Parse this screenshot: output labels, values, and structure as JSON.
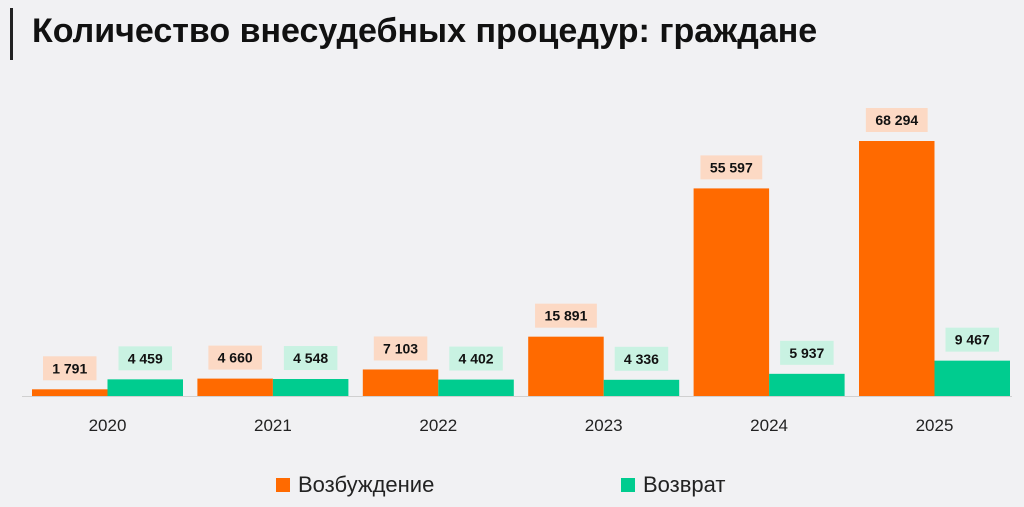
{
  "title": "Количество внесудебных процедур: граждане",
  "colors": {
    "initiation": "#ff6a00",
    "return": "#00cc8f",
    "initiation_label_bg": "#fcd9c4",
    "return_label_bg": "#c9f2e2"
  },
  "chart_data": {
    "type": "bar",
    "title": "Количество внесудебных процедур: граждане",
    "categories": [
      "2020",
      "2021",
      "2022",
      "2023",
      "2024",
      "2025"
    ],
    "series": [
      {
        "name": "Возбуждение",
        "values": [
          1791,
          4660,
          7103,
          15891,
          55597,
          68294
        ],
        "labels": [
          "1 791",
          "4 660",
          "7 103",
          "15 891",
          "55 597",
          "68 294"
        ]
      },
      {
        "name": "Возврат",
        "values": [
          4459,
          4548,
          4402,
          4336,
          5937,
          9467
        ],
        "labels": [
          "4 459",
          "4 548",
          "4 402",
          "4 336",
          "5 937",
          "9 467"
        ]
      }
    ],
    "ylim": [
      0,
      68294
    ],
    "grid": false,
    "legend_position": "bottom"
  }
}
